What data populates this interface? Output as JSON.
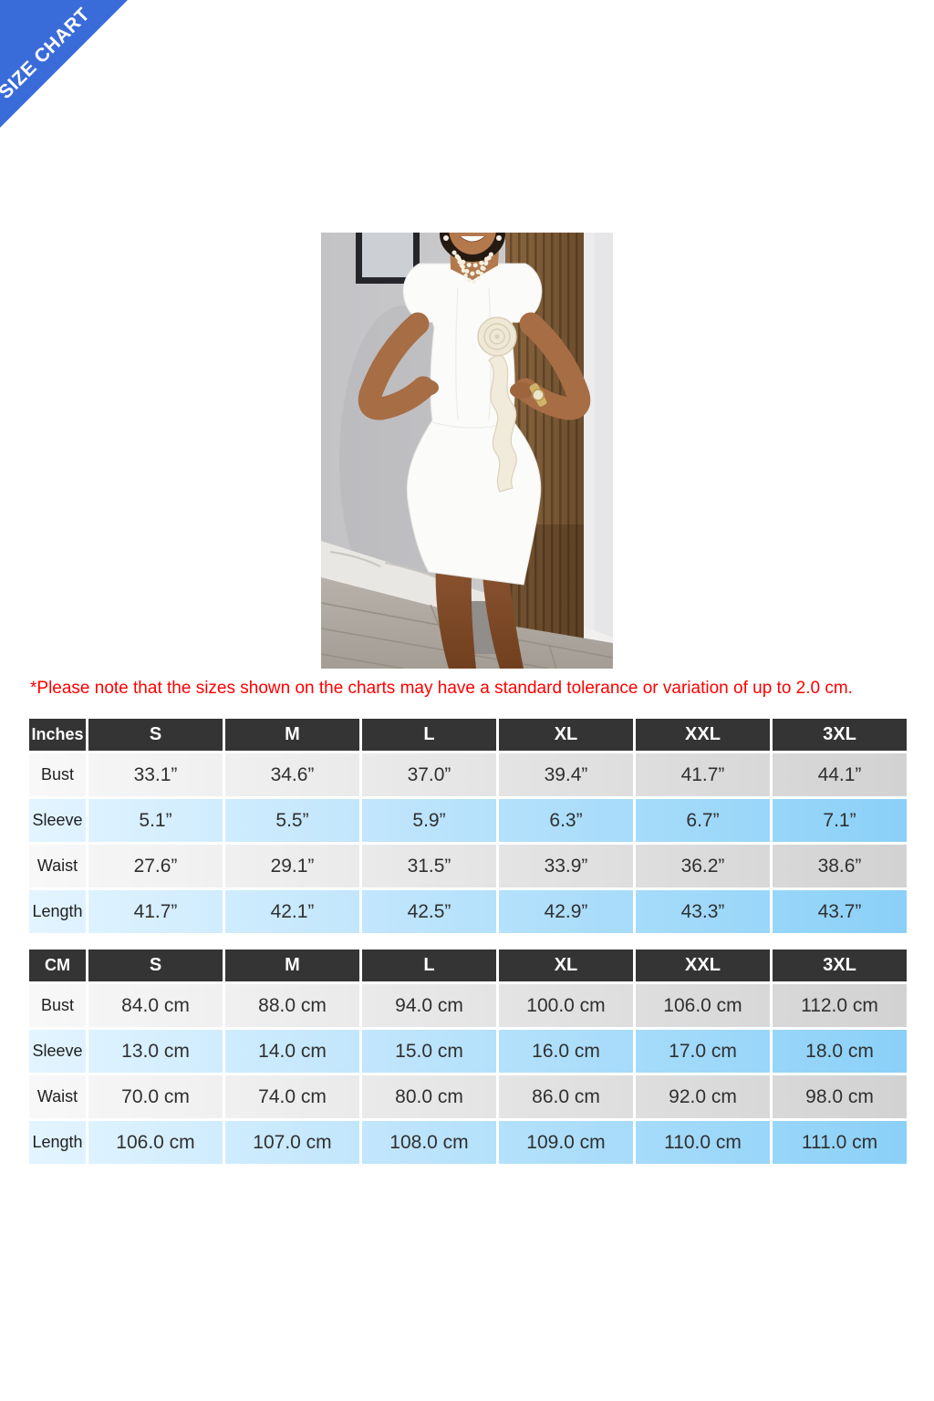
{
  "ribbon": {
    "label": "SIZE CHART",
    "color": "#3a6cd9"
  },
  "note": {
    "text": "*Please note that the sizes shown on the charts may have a standard tolerance or variation of up to 2.0 cm.",
    "color": "#ff0000"
  },
  "photo": {
    "description": "Model wearing a white short-sleeve knee-length dress with puff shoulders and a 3D rose ruffle detail, hands on hips, standing in front of a gray wall, framed picture and wooden slat panel"
  },
  "size_tables": [
    {
      "unit_label": "Inches",
      "columns": [
        "S",
        "M",
        "L",
        "XL",
        "XXL",
        "3XL"
      ],
      "rows": [
        {
          "label": "Bust",
          "values": [
            "33.1”",
            "34.6”",
            "37.0”",
            "39.4”",
            "41.7”",
            "44.1”"
          ]
        },
        {
          "label": "Sleeve",
          "values": [
            "5.1”",
            "5.5”",
            "5.9”",
            "6.3”",
            "6.7”",
            "7.1”"
          ]
        },
        {
          "label": "Waist",
          "values": [
            "27.6”",
            "29.1”",
            "31.5”",
            "33.9”",
            "36.2”",
            "38.6”"
          ]
        },
        {
          "label": "Length",
          "values": [
            "41.7”",
            "42.1”",
            "42.5”",
            "42.9”",
            "43.3”",
            "43.7”"
          ]
        }
      ]
    },
    {
      "unit_label": "CM",
      "columns": [
        "S",
        "M",
        "L",
        "XL",
        "XXL",
        "3XL"
      ],
      "rows": [
        {
          "label": "Bust",
          "values": [
            "84.0 cm",
            "88.0 cm",
            "94.0 cm",
            "100.0 cm",
            "106.0 cm",
            "112.0 cm"
          ]
        },
        {
          "label": "Sleeve",
          "values": [
            "13.0 cm",
            "14.0 cm",
            "15.0 cm",
            "16.0 cm",
            "17.0 cm",
            "18.0 cm"
          ]
        },
        {
          "label": "Waist",
          "values": [
            "70.0 cm",
            "74.0 cm",
            "80.0 cm",
            "86.0 cm",
            "92.0 cm",
            "98.0 cm"
          ]
        },
        {
          "label": "Length",
          "values": [
            "106.0 cm",
            "107.0 cm",
            "108.0 cm",
            "109.0 cm",
            "110.0 cm",
            "111.0 cm"
          ]
        }
      ]
    }
  ],
  "colors": {
    "header_bg": "#343434",
    "header_text": "#ffffff",
    "row_gray_start": "#f8f8f8",
    "row_gray_end": "#d2d2d2",
    "row_blue_start": "#e3f4ff",
    "row_blue_end": "#8bd0f8",
    "cell_text": "#303030"
  }
}
